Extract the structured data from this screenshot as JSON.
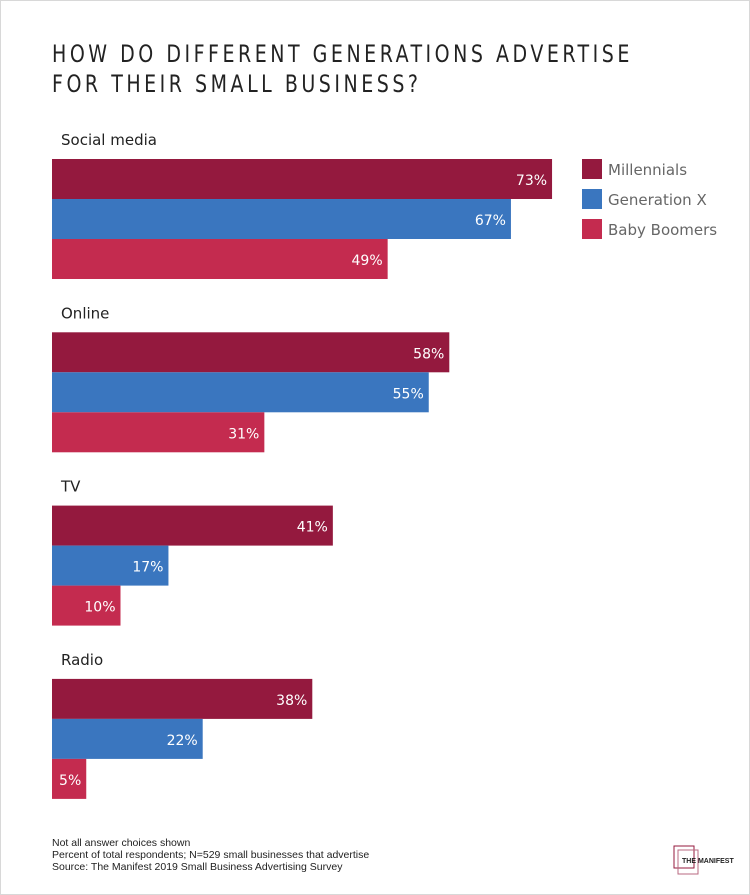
{
  "chart_data": {
    "type": "bar",
    "orientation": "horizontal",
    "title": "HOW DO DIFFERENT GENERATIONS ADVERTISE FOR THEIR SMALL BUSINESS?",
    "title_lines": [
      "HOW DO DIFFERENT GENERATIONS ADVERTISE",
      "FOR THEIR SMALL BUSINESS?"
    ],
    "categories": [
      "Social media",
      "Online",
      "TV",
      "Radio"
    ],
    "series": [
      {
        "name": "Millennials",
        "color": "#94193e",
        "values": [
          73,
          58,
          41,
          38
        ]
      },
      {
        "name": "Generation X",
        "color": "#3a76bf",
        "values": [
          67,
          55,
          17,
          22
        ]
      },
      {
        "name": "Baby Boomers",
        "color": "#c42b4f",
        "values": [
          49,
          31,
          10,
          5
        ]
      }
    ],
    "value_suffix": "%",
    "xlim": [
      0,
      100
    ],
    "grid": false,
    "legend_placement": "top-right",
    "notes": [
      "Not all answer choices shown",
      "Percent of total respondents; N=529 small businesses that advertise",
      "Source: The Manifest 2019 Small Business Advertising Survey"
    ]
  },
  "logo": {
    "text": "THE MANIFEST",
    "color": "#94193e"
  }
}
